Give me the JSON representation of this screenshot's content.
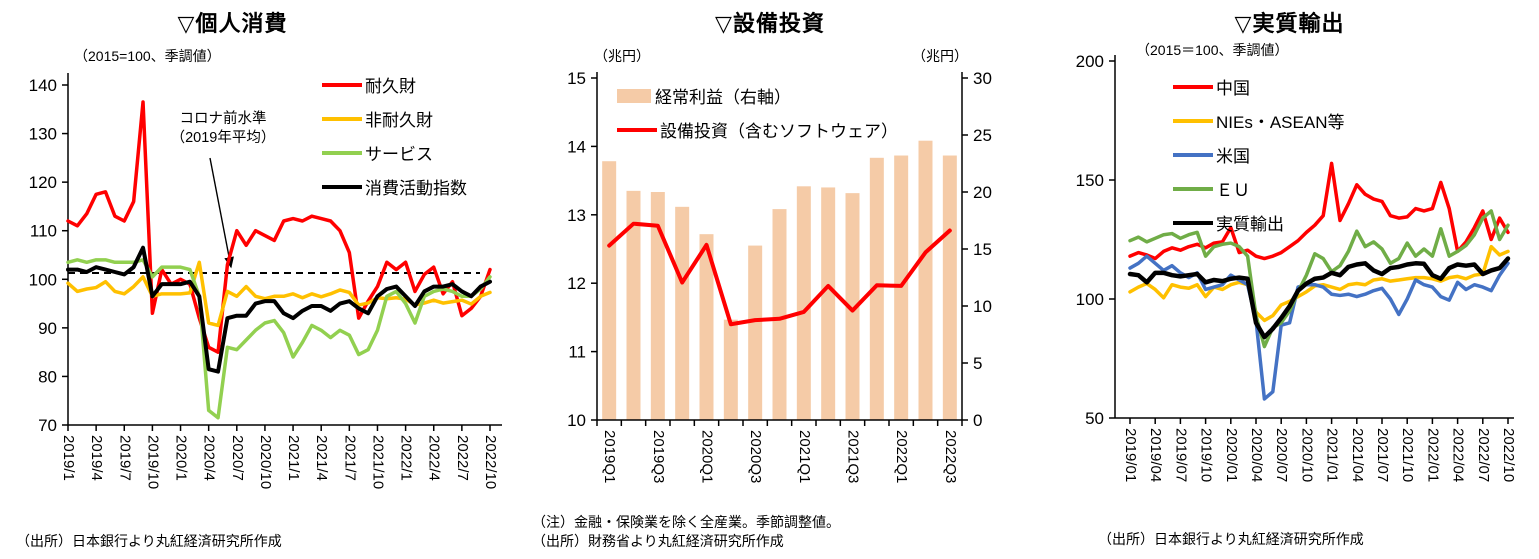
{
  "page": {
    "background": "#ffffff"
  },
  "charts": [
    {
      "title": "▽個人消費",
      "subtitle": "（2015=100、季調値）",
      "source": "（出所）日本銀行より丸紅経済研究所作成",
      "chart_data": {
        "type": "line",
        "x": [
          "2019/1",
          "2019/2",
          "2019/3",
          "2019/4",
          "2019/5",
          "2019/6",
          "2019/7",
          "2019/8",
          "2019/9",
          "2019/10",
          "2019/11",
          "2019/12",
          "2020/1",
          "2020/2",
          "2020/3",
          "2020/4",
          "2020/5",
          "2020/6",
          "2020/7",
          "2020/8",
          "2020/9",
          "2020/10",
          "2020/11",
          "2020/12",
          "2021/1",
          "2021/2",
          "2021/3",
          "2021/4",
          "2021/5",
          "2021/6",
          "2021/7",
          "2021/8",
          "2021/9",
          "2021/10",
          "2021/11",
          "2021/12",
          "2022/1",
          "2022/2",
          "2022/3",
          "2022/4",
          "2022/5",
          "2022/6",
          "2022/7",
          "2022/8",
          "2022/9",
          "2022/10"
        ],
        "x_labels_shown": [
          "2019/1",
          "2019/4",
          "2019/7",
          "2019/10",
          "2020/1",
          "2020/4",
          "2020/7",
          "2020/10",
          "2021/1",
          "2021/4",
          "2021/7",
          "2021/10",
          "2022/1",
          "2022/4",
          "2022/7",
          "2022/10"
        ],
        "ylim": [
          70,
          140
        ],
        "yticks": [
          70,
          80,
          90,
          100,
          110,
          120,
          130,
          140
        ],
        "reference_line": {
          "value": 101.3,
          "style": "dashed",
          "color": "#000000"
        },
        "annotation": {
          "line1": "コロナ前水準",
          "line2": "（2019年平均）"
        },
        "legend_position": "top-right",
        "series": [
          {
            "name": "耐久財",
            "color": "#FF0000",
            "values": [
              112,
              111,
              113.5,
              117.5,
              118,
              113,
              112,
              116,
              136.5,
              93,
              102,
              99,
              100,
              99,
              92,
              86,
              85,
              103,
              110,
              107,
              110,
              109,
              108,
              112,
              112.5,
              112,
              113,
              112.5,
              112,
              110,
              105.5,
              92,
              95.5,
              98.5,
              103.5,
              102,
              103.5,
              97.5,
              101,
              102.5,
              97,
              99.5,
              92.5,
              94,
              96.5,
              102
            ]
          },
          {
            "name": "非耐久財",
            "color": "#FFC000",
            "values": [
              99.2,
              97.5,
              98,
              98.3,
              99.5,
              97.5,
              97,
              98.5,
              100.5,
              96.5,
              97,
              97,
              97,
              97.2,
              103.5,
              91,
              90.5,
              97.5,
              96.5,
              98.5,
              96.5,
              96,
              96.5,
              96.5,
              97,
              96.2,
              97,
              96.4,
              97,
              97.8,
              97.3,
              94.7,
              95.1,
              96.2,
              96,
              96.2,
              95.9,
              94.7,
              95.1,
              95.7,
              95.1,
              95.4,
              95.7,
              94.9,
              96.5,
              97.3
            ]
          },
          {
            "name": "サービス",
            "color": "#92D050",
            "values": [
              103.5,
              104,
              103.5,
              104,
              104,
              103.5,
              103.5,
              103.5,
              104,
              100.5,
              102.5,
              102.5,
              102.5,
              102,
              96.5,
              73,
              71.5,
              86,
              85.5,
              87.5,
              89.5,
              91,
              91.5,
              89,
              84,
              87,
              90.5,
              89.5,
              88,
              89.5,
              88.5,
              84.5,
              85.5,
              89.5,
              96.5,
              97.5,
              95,
              91,
              96.5,
              97.5,
              98,
              97.5,
              96.5,
              96.5,
              98,
              100.5
            ]
          },
          {
            "name": "消費活動指数",
            "color": "#000000",
            "values": [
              102,
              102,
              101.5,
              102.5,
              102,
              101.5,
              101,
              102.5,
              106.5,
              96.5,
              99,
              99,
              99,
              99.5,
              96.5,
              81.5,
              81,
              92,
              92.5,
              92.5,
              95,
              95.5,
              95.5,
              93,
              92,
              93.5,
              94.5,
              94.5,
              93.5,
              95,
              95.5,
              94,
              93,
              96.5,
              98,
              98.5,
              96.5,
              94.5,
              97.5,
              98.5,
              98.5,
              99,
              97.5,
              96.5,
              98.5,
              99.5
            ]
          }
        ]
      }
    },
    {
      "title": "▽設備投資",
      "axis_unit_left": "（兆円）",
      "axis_unit_right": "（兆円）",
      "note": "（注）金融・保険業を除く全産業。季節調整値。",
      "source": "（出所）財務省より丸紅経済研究所作成",
      "chart_data": {
        "type": "bar+line",
        "x": [
          "2019Q1",
          "2019Q2",
          "2019Q3",
          "2019Q4",
          "2020Q1",
          "2020Q2",
          "2020Q3",
          "2020Q4",
          "2021Q1",
          "2021Q2",
          "2021Q3",
          "2021Q4",
          "2022Q1",
          "2022Q2",
          "2022Q3"
        ],
        "x_labels_shown": [
          "2019Q1",
          "2019Q3",
          "2020Q1",
          "2020Q3",
          "2021Q1",
          "2021Q3",
          "2022Q1",
          "2022Q3"
        ],
        "left_ylim": [
          10,
          15
        ],
        "left_yticks": [
          10,
          11,
          12,
          13,
          14,
          15
        ],
        "right_ylim": [
          0,
          30
        ],
        "right_yticks": [
          0,
          5,
          10,
          15,
          20,
          25,
          30
        ],
        "legend_position": "top-left",
        "series": [
          {
            "name": "経常利益（右軸）",
            "type": "bar",
            "axis": "right",
            "color": "#F5CBA7",
            "values": [
              22.7,
              20.1,
              20.0,
              18.7,
              16.3,
              8.8,
              15.3,
              18.5,
              20.5,
              20.4,
              19.9,
              23.0,
              23.2,
              24.5,
              23.2
            ]
          },
          {
            "name": "設備投資（含むソフトウェア）",
            "type": "line",
            "axis": "left",
            "color": "#FF0000",
            "values": [
              12.55,
              12.87,
              12.84,
              12.01,
              12.56,
              11.4,
              11.46,
              11.48,
              11.58,
              11.96,
              11.6,
              11.97,
              11.96,
              12.45,
              12.77
            ]
          }
        ]
      }
    },
    {
      "title": "▽実質輸出",
      "subtitle": "（2015＝100、季調値）",
      "source": "（出所）日本銀行より丸紅経済研究所作成",
      "chart_data": {
        "type": "line",
        "x": [
          "2019/01",
          "2019/02",
          "2019/03",
          "2019/04",
          "2019/05",
          "2019/06",
          "2019/07",
          "2019/08",
          "2019/09",
          "2019/10",
          "2019/11",
          "2019/12",
          "2020/01",
          "2020/02",
          "2020/03",
          "2020/04",
          "2020/05",
          "2020/06",
          "2020/07",
          "2020/08",
          "2020/09",
          "2020/10",
          "2020/11",
          "2020/12",
          "2021/01",
          "2021/02",
          "2021/03",
          "2021/04",
          "2021/05",
          "2021/06",
          "2021/07",
          "2021/08",
          "2021/09",
          "2021/10",
          "2021/11",
          "2021/12",
          "2022/01",
          "2022/02",
          "2022/03",
          "2022/04",
          "2022/05",
          "2022/06",
          "2022/07",
          "2022/08",
          "2022/09",
          "2022/10"
        ],
        "x_labels_shown": [
          "2019/01",
          "2019/04",
          "2019/07",
          "2019/10",
          "2020/01",
          "2020/04",
          "2020/07",
          "2020/10",
          "2021/01",
          "2021/04",
          "2021/07",
          "2021/10",
          "2022/01",
          "2022/04",
          "2022/07",
          "2022/10"
        ],
        "ylim": [
          50,
          200
        ],
        "yticks": [
          50,
          100,
          150,
          200
        ],
        "legend_position": "top-left",
        "series": [
          {
            "name": "中国",
            "color": "#FF0000",
            "values": [
              118,
              119.5,
              118.5,
              117,
              120,
              121.5,
              120.5,
              122,
              123,
              121.5,
              123.5,
              124,
              130,
              119.5,
              120.5,
              118,
              117,
              118,
              119.5,
              122,
              124.5,
              128,
              131,
              135,
              157,
              133,
              140,
              148,
              144,
              142,
              141,
              135,
              134,
              134.5,
              138,
              137,
              138,
              149,
              138,
              120,
              124,
              130,
              137,
              125,
              134,
              128
            ]
          },
          {
            "name": "NIEs・ASEAN等",
            "color": "#FFC000",
            "values": [
              103,
              105,
              106.5,
              104,
              100.5,
              106,
              105,
              104.5,
              106,
              101,
              105,
              104,
              106,
              107,
              106,
              94.5,
              91,
              93,
              97.5,
              99,
              101,
              103,
              105.5,
              106,
              105,
              104,
              106,
              106.5,
              106,
              108,
              108.5,
              107.5,
              108,
              108.5,
              109,
              109,
              108.5,
              107.5,
              109,
              109.5,
              108.5,
              110,
              110.5,
              122,
              118.5,
              120
            ]
          },
          {
            "name": "米国",
            "color": "#4472C4",
            "values": [
              113,
              115,
              118,
              115,
              112,
              114,
              111,
              109,
              111,
              104,
              105,
              106,
              110,
              108,
              106,
              91,
              58,
              61,
              89,
              90,
              105,
              106,
              106,
              105,
              102,
              101.5,
              102,
              101,
              102,
              103.5,
              104.5,
              100,
              93.5,
              100,
              108,
              106,
              105,
              101,
              99.5,
              107,
              104,
              106,
              105,
              103.5,
              110,
              115
            ]
          },
          {
            "name": "ＥＵ",
            "color": "#70AD47",
            "values": [
              124.5,
              126,
              124,
              125.5,
              127,
              127.5,
              125.5,
              127,
              128,
              118,
              122,
              123,
              123.5,
              122,
              118,
              93,
              80,
              88,
              90,
              95,
              103,
              110,
              119,
              117,
              111.5,
              114,
              120,
              128.5,
              122,
              124,
              121,
              115,
              117,
              123.5,
              118,
              121,
              118,
              129.5,
              118,
              120,
              122.5,
              127,
              134,
              137,
              125,
              131
            ]
          },
          {
            "name": "実質輸出",
            "color": "#000000",
            "values": [
              110.5,
              110,
              107,
              111,
              111,
              110,
              109.5,
              110,
              110.5,
              107,
              108,
              107.5,
              108.5,
              109,
              108.5,
              90,
              84,
              87.5,
              92,
              97,
              103.5,
              106.5,
              108.5,
              109,
              111,
              110,
              113.5,
              114.5,
              115,
              112,
              110.5,
              113,
              113.5,
              114.5,
              115,
              114.8,
              110,
              108.5,
              113,
              114.5,
              114,
              114.5,
              110.5,
              112,
              113,
              117
            ]
          }
        ]
      }
    }
  ]
}
